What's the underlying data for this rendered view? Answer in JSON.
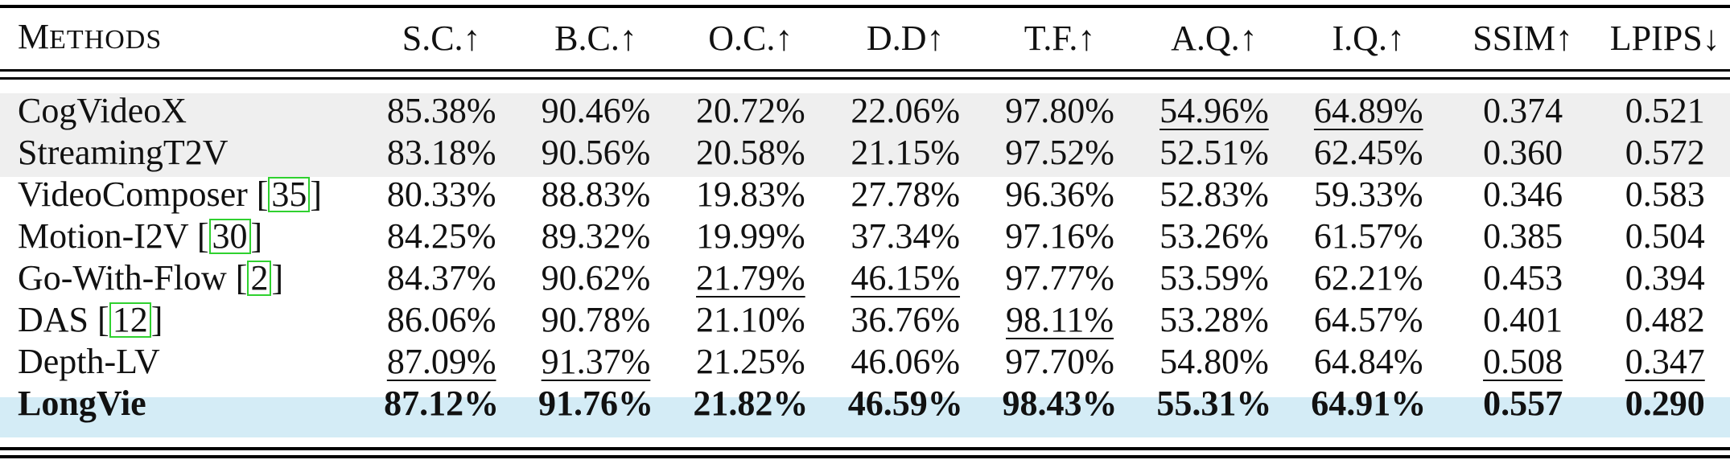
{
  "header": {
    "method": {
      "first": "M",
      "rest": "ETHODS"
    },
    "metrics": [
      "S.C.↑",
      "B.C.↑",
      "O.C.↑",
      "D.D↑",
      "T.F.↑",
      "A.Q.↑",
      "I.Q.↑",
      "SSIM↑",
      "LPIPS↓"
    ]
  },
  "rows": [
    {
      "name": "CogVideoX",
      "cite": "",
      "values": [
        "85.38%",
        "90.46%",
        "20.72%",
        "22.06%",
        "97.80%",
        "54.96%",
        "64.89%",
        "0.374",
        "0.521"
      ],
      "underlined": [
        false,
        false,
        false,
        false,
        false,
        true,
        true,
        false,
        false
      ],
      "bold": false,
      "shade": "grey"
    },
    {
      "name": "StreamingT2V",
      "cite": "",
      "values": [
        "83.18%",
        "90.56%",
        "20.58%",
        "21.15%",
        "97.52%",
        "52.51%",
        "62.45%",
        "0.360",
        "0.572"
      ],
      "underlined": [
        false,
        false,
        false,
        false,
        false,
        false,
        false,
        false,
        false
      ],
      "bold": false,
      "shade": "grey"
    },
    {
      "name": "VideoComposer",
      "cite": "35",
      "values": [
        "80.33%",
        "88.83%",
        "19.83%",
        "27.78%",
        "96.36%",
        "52.83%",
        "59.33%",
        "0.346",
        "0.583"
      ],
      "underlined": [
        false,
        false,
        false,
        false,
        false,
        false,
        false,
        false,
        false
      ],
      "bold": false,
      "shade": "none"
    },
    {
      "name": "Motion-I2V",
      "cite": "30",
      "values": [
        "84.25%",
        "89.32%",
        "19.99%",
        "37.34%",
        "97.16%",
        "53.26%",
        "61.57%",
        "0.385",
        "0.504"
      ],
      "underlined": [
        false,
        false,
        false,
        false,
        false,
        false,
        false,
        false,
        false
      ],
      "bold": false,
      "shade": "none"
    },
    {
      "name": "Go-With-Flow",
      "cite": "2",
      "values": [
        "84.37%",
        "90.62%",
        "21.79%",
        "46.15%",
        "97.77%",
        "53.59%",
        "62.21%",
        "0.453",
        "0.394"
      ],
      "underlined": [
        false,
        false,
        true,
        true,
        false,
        false,
        false,
        false,
        false
      ],
      "bold": false,
      "shade": "none"
    },
    {
      "name": "DAS",
      "cite": "12",
      "values": [
        "86.06%",
        "90.78%",
        "21.10%",
        "36.76%",
        "98.11%",
        "53.28%",
        "64.57%",
        "0.401",
        "0.482"
      ],
      "underlined": [
        false,
        false,
        false,
        false,
        true,
        false,
        false,
        false,
        false
      ],
      "bold": false,
      "shade": "none"
    },
    {
      "name": "Depth-LV",
      "cite": "",
      "values": [
        "87.09%",
        "91.37%",
        "21.25%",
        "46.06%",
        "97.70%",
        "54.80%",
        "64.84%",
        "0.508",
        "0.347"
      ],
      "underlined": [
        true,
        true,
        false,
        false,
        false,
        false,
        false,
        true,
        true
      ],
      "bold": false,
      "shade": "none"
    },
    {
      "name": "LongVie",
      "cite": "",
      "values": [
        "87.12%",
        "91.76%",
        "21.82%",
        "46.59%",
        "98.43%",
        "55.31%",
        "64.91%",
        "0.557",
        "0.290"
      ],
      "underlined": [
        false,
        false,
        false,
        false,
        false,
        false,
        false,
        false,
        false
      ],
      "bold": true,
      "shade": "blue"
    }
  ],
  "colors": {
    "grey_row": "#efefef",
    "highlight_row": "#d4ecf6",
    "cite_box": "#2fd12f"
  }
}
